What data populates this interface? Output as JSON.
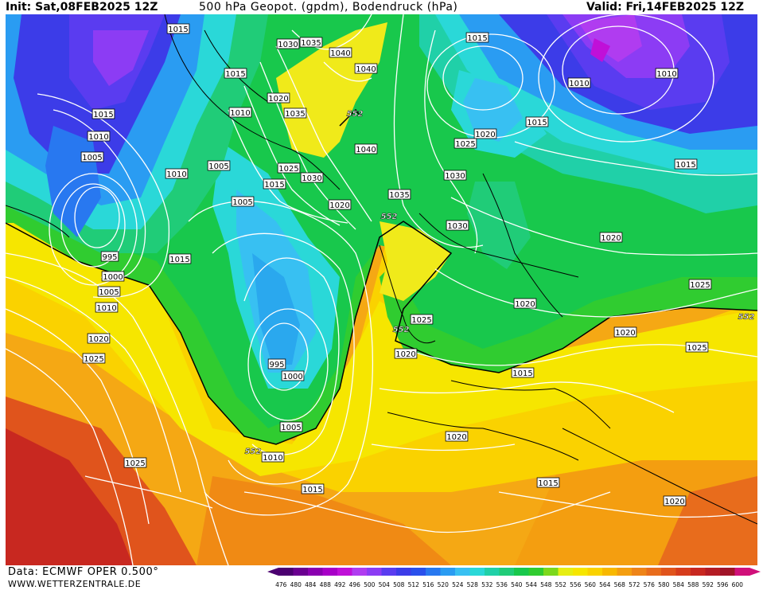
{
  "header": {
    "init": "Init: Sat,08FEB2025 12Z",
    "title": "500 hPa Geopot. (gpdm), Bodendruck (hPa)",
    "valid": "Valid: Fri,14FEB2025 12Z"
  },
  "footer": {
    "data_source": "Data: ECMWF OPER 0.500°",
    "website": "WWW.WETTERZENTRALE.DE"
  },
  "legend": {
    "levels": [
      "476",
      "480",
      "484",
      "488",
      "492",
      "496",
      "500",
      "504",
      "508",
      "512",
      "516",
      "520",
      "524",
      "528",
      "532",
      "536",
      "540",
      "544",
      "548",
      "552",
      "556",
      "560",
      "564",
      "568",
      "572",
      "576",
      "580",
      "584",
      "588",
      "592",
      "596",
      "600"
    ],
    "colors": [
      "#4b0070",
      "#6a0090",
      "#8a00b0",
      "#a800c8",
      "#c010d8",
      "#b03cf0",
      "#8c3cf4",
      "#5a3cf0",
      "#3c3ce8",
      "#2a50ec",
      "#2878f0",
      "#2a9cf2",
      "#38c0f2",
      "#2ad8d8",
      "#20d0a8",
      "#20cc78",
      "#18c84c",
      "#30cc30",
      "#7cd81c",
      "#e6ee14",
      "#f6e600",
      "#fad200",
      "#f8b800",
      "#f49e10",
      "#ee8418",
      "#e86c1c",
      "#e0541c",
      "#d63c1c",
      "#c82820",
      "#b41c24",
      "#a01428",
      "#d0107a"
    ]
  },
  "map": {
    "isobar_labels": [
      {
        "text": "1015",
        "pos": [
          224,
          36
        ]
      },
      {
        "text": "1015",
        "pos": [
          296,
          92
        ]
      },
      {
        "text": "1010",
        "pos": [
          302,
          141
        ]
      },
      {
        "text": "1015",
        "pos": [
          130,
          143
        ]
      },
      {
        "text": "1010",
        "pos": [
          124,
          171
        ]
      },
      {
        "text": "1005",
        "pos": [
          116,
          197
        ]
      },
      {
        "text": "1010",
        "pos": [
          222,
          218
        ]
      },
      {
        "text": "1005",
        "pos": [
          275,
          208
        ]
      },
      {
        "text": "1005",
        "pos": [
          305,
          253
        ]
      },
      {
        "text": "1015",
        "pos": [
          226,
          325
        ]
      },
      {
        "text": "995",
        "pos": [
          138,
          322
        ]
      },
      {
        "text": "1000",
        "pos": [
          142,
          347
        ]
      },
      {
        "text": "1005",
        "pos": [
          137,
          366
        ]
      },
      {
        "text": "1010",
        "pos": [
          134,
          386
        ]
      },
      {
        "text": "1020",
        "pos": [
          124,
          425
        ]
      },
      {
        "text": "1025",
        "pos": [
          118,
          450
        ]
      },
      {
        "text": "1030",
        "pos": [
          362,
          55
        ]
      },
      {
        "text": "1035",
        "pos": [
          391,
          53
        ]
      },
      {
        "text": "1040",
        "pos": [
          428,
          66
        ]
      },
      {
        "text": "1040",
        "pos": [
          460,
          86
        ]
      },
      {
        "text": "1020",
        "pos": [
          350,
          123
        ]
      },
      {
        "text": "1035",
        "pos": [
          371,
          142
        ]
      },
      {
        "text": "1040",
        "pos": [
          460,
          187
        ]
      },
      {
        "text": "1025",
        "pos": [
          363,
          211
        ]
      },
      {
        "text": "1030",
        "pos": [
          392,
          223
        ]
      },
      {
        "text": "1015",
        "pos": [
          345,
          231
        ]
      },
      {
        "text": "1020",
        "pos": [
          427,
          257
        ]
      },
      {
        "text": "1035",
        "pos": [
          502,
          244
        ]
      },
      {
        "text": "995",
        "pos": [
          348,
          457
        ]
      },
      {
        "text": "1000",
        "pos": [
          368,
          472
        ]
      },
      {
        "text": "1005",
        "pos": [
          366,
          536
        ]
      },
      {
        "text": "1010",
        "pos": [
          343,
          574
        ]
      },
      {
        "text": "1025",
        "pos": [
          530,
          401
        ]
      },
      {
        "text": "1020",
        "pos": [
          510,
          444
        ]
      },
      {
        "text": "1015",
        "pos": [
          600,
          47
        ]
      },
      {
        "text": "1010",
        "pos": [
          728,
          104
        ]
      },
      {
        "text": "1010",
        "pos": [
          838,
          92
        ]
      },
      {
        "text": "1015",
        "pos": [
          675,
          153
        ]
      },
      {
        "text": "1020",
        "pos": [
          610,
          168
        ]
      },
      {
        "text": "1025",
        "pos": [
          585,
          180
        ]
      },
      {
        "text": "1030",
        "pos": [
          572,
          220
        ]
      },
      {
        "text": "1030",
        "pos": [
          575,
          283
        ]
      },
      {
        "text": "1015",
        "pos": [
          862,
          206
        ]
      },
      {
        "text": "1020",
        "pos": [
          768,
          298
        ]
      },
      {
        "text": "1025",
        "pos": [
          880,
          357
        ]
      },
      {
        "text": "1020",
        "pos": [
          660,
          381
        ]
      },
      {
        "text": "1020",
        "pos": [
          786,
          417
        ]
      },
      {
        "text": "1025",
        "pos": [
          876,
          436
        ]
      },
      {
        "text": "1015",
        "pos": [
          657,
          468
        ]
      },
      {
        "text": "1020",
        "pos": [
          574,
          548
        ]
      },
      {
        "text": "1025",
        "pos": [
          170,
          581
        ]
      },
      {
        "text": "1015",
        "pos": [
          393,
          614
        ]
      },
      {
        "text": "1015",
        "pos": [
          689,
          606
        ]
      },
      {
        "text": "1020",
        "pos": [
          848,
          629
        ]
      }
    ],
    "contour_552_labels": [
      {
        "text": "552",
        "pos": [
          446,
          142
        ]
      },
      {
        "text": "552",
        "pos": [
          489,
          271
        ]
      },
      {
        "text": "552",
        "pos": [
          504,
          413
        ]
      },
      {
        "text": "552",
        "pos": [
          318,
          566
        ]
      },
      {
        "text": "552",
        "pos": [
          938,
          397
        ]
      }
    ]
  }
}
